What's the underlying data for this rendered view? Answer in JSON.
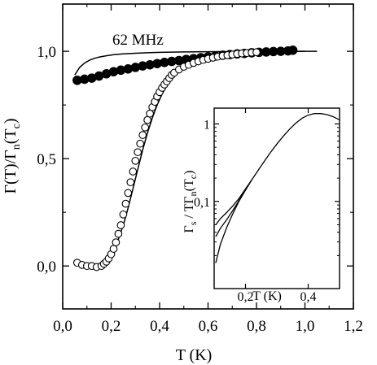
{
  "chart_data": [
    {
      "type": "scatter",
      "annotation": "62 MHz",
      "xlabel": "T (K)",
      "ylabel": {
        "prefix": "Γ(T)/Γ",
        "sub1": "n",
        "mid": "(T",
        "sub2": "c",
        "suffix": ")"
      },
      "xlim": [
        0.0,
        1.2
      ],
      "ylim": [
        -0.2,
        1.22
      ],
      "xticks": [
        "0,0",
        "0,2",
        "0,4",
        "0,6",
        "0,8",
        "1,0",
        "1,2"
      ],
      "yticks": [
        "0,0",
        "0,5",
        "1,0"
      ],
      "xtick_values": [
        0.0,
        0.2,
        0.4,
        0.6,
        0.8,
        1.0,
        1.2
      ],
      "ytick_values": [
        0.0,
        0.5,
        1.0
      ],
      "grid": false,
      "series": [
        {
          "marker": "filled-circle",
          "x": [
            0.06,
            0.09,
            0.12,
            0.15,
            0.18,
            0.21,
            0.24,
            0.27,
            0.3,
            0.33,
            0.36,
            0.39,
            0.42,
            0.45,
            0.48,
            0.51,
            0.54,
            0.57,
            0.6,
            0.63,
            0.66,
            0.69,
            0.72,
            0.75,
            0.78,
            0.81,
            0.84,
            0.87,
            0.9,
            0.93,
            0.95
          ],
          "y": [
            0.865,
            0.87,
            0.875,
            0.885,
            0.895,
            0.905,
            0.912,
            0.918,
            0.925,
            0.932,
            0.937,
            0.943,
            0.948,
            0.953,
            0.957,
            0.962,
            0.966,
            0.97,
            0.974,
            0.978,
            0.982,
            0.985,
            0.988,
            0.99,
            0.993,
            0.995,
            0.997,
            0.999,
            1.0,
            1.002,
            1.005
          ]
        },
        {
          "marker": "open-circle",
          "x": [
            0.06,
            0.08,
            0.1,
            0.12,
            0.14,
            0.16,
            0.17,
            0.18,
            0.19,
            0.2,
            0.21,
            0.22,
            0.23,
            0.24,
            0.25,
            0.26,
            0.27,
            0.28,
            0.29,
            0.3,
            0.31,
            0.32,
            0.33,
            0.34,
            0.35,
            0.36,
            0.37,
            0.38,
            0.39,
            0.4,
            0.41,
            0.42,
            0.43,
            0.44,
            0.45,
            0.46,
            0.48,
            0.5,
            0.52,
            0.54,
            0.56,
            0.58,
            0.6,
            0.62,
            0.64,
            0.66,
            0.68,
            0.7,
            0.72,
            0.74,
            0.76,
            0.78,
            0.8
          ],
          "y": [
            0.015,
            0.005,
            0.0,
            0.0,
            -0.005,
            0.0,
            0.01,
            0.02,
            0.035,
            0.055,
            0.08,
            0.11,
            0.15,
            0.19,
            0.24,
            0.29,
            0.34,
            0.39,
            0.44,
            0.49,
            0.53,
            0.57,
            0.61,
            0.645,
            0.68,
            0.71,
            0.74,
            0.765,
            0.79,
            0.81,
            0.83,
            0.845,
            0.86,
            0.875,
            0.89,
            0.9,
            0.915,
            0.928,
            0.937,
            0.946,
            0.953,
            0.96,
            0.965,
            0.97,
            0.975,
            0.979,
            0.982,
            0.985,
            0.988,
            0.99,
            0.992,
            0.994,
            0.996
          ]
        },
        {
          "marker": "line",
          "x": [
            0.05,
            0.07,
            0.09,
            0.11,
            0.13,
            0.15,
            0.18,
            0.21,
            0.25,
            0.3,
            0.35,
            0.4,
            0.5,
            0.6,
            0.7,
            0.8,
            0.9,
            1.0,
            1.05
          ],
          "y": [
            0.89,
            0.925,
            0.945,
            0.958,
            0.967,
            0.973,
            0.979,
            0.984,
            0.988,
            0.991,
            0.993,
            0.995,
            0.997,
            0.998,
            0.999,
            0.999,
            1.0,
            1.0,
            1.0
          ]
        },
        {
          "marker": "line",
          "x": [
            0.1,
            0.13,
            0.15,
            0.17,
            0.19,
            0.21,
            0.23,
            0.25,
            0.27,
            0.29,
            0.31,
            0.33,
            0.35,
            0.37,
            0.39,
            0.41,
            0.43,
            0.45,
            0.48,
            0.52,
            0.56,
            0.6,
            0.65,
            0.7,
            0.75,
            0.8,
            0.85,
            0.9,
            0.95,
            1.0
          ],
          "y": [
            0.0,
            0.0,
            0.005,
            0.02,
            0.04,
            0.075,
            0.125,
            0.19,
            0.27,
            0.36,
            0.45,
            0.54,
            0.62,
            0.69,
            0.75,
            0.8,
            0.84,
            0.87,
            0.905,
            0.935,
            0.955,
            0.967,
            0.978,
            0.985,
            0.99,
            0.994,
            0.996,
            0.998,
            0.999,
            1.0
          ]
        }
      ]
    },
    {
      "type": "line",
      "xlabel": "T (K)",
      "ylabel": {
        "prefix": "Γ",
        "sub1": "s",
        "mid": " / TΓ",
        "sub2": "n",
        "mid2": "(T",
        "sub3": "c",
        "suffix": ")"
      },
      "xlim": [
        0.1,
        0.5
      ],
      "ylim": [
        0.0075,
        1.6
      ],
      "yscale": "log",
      "xticks": [
        "0,2",
        "0,4"
      ],
      "xtick_values": [
        0.2,
        0.4
      ],
      "yticks": [
        "0,1",
        "1"
      ],
      "ytick_values": [
        0.1,
        1.0
      ],
      "series": [
        {
          "x": [
            0.105,
            0.12,
            0.14,
            0.16,
            0.18,
            0.2,
            0.22,
            0.24,
            0.26,
            0.28,
            0.3,
            0.32,
            0.34,
            0.36,
            0.38,
            0.4,
            0.42,
            0.44,
            0.46,
            0.48,
            0.5
          ],
          "y": [
            0.016,
            0.028,
            0.046,
            0.07,
            0.102,
            0.14,
            0.19,
            0.25,
            0.33,
            0.43,
            0.55,
            0.69,
            0.85,
            1.02,
            1.18,
            1.3,
            1.36,
            1.36,
            1.32,
            1.24,
            1.13
          ]
        },
        {
          "x": [
            0.105,
            0.12,
            0.14,
            0.16,
            0.18,
            0.2,
            0.22
          ],
          "y": [
            0.035,
            0.045,
            0.058,
            0.077,
            0.104,
            0.14,
            0.19
          ]
        },
        {
          "x": [
            0.105,
            0.12,
            0.14,
            0.16,
            0.18,
            0.2,
            0.22
          ],
          "y": [
            0.05,
            0.06,
            0.072,
            0.088,
            0.11,
            0.145,
            0.19
          ]
        }
      ]
    }
  ]
}
